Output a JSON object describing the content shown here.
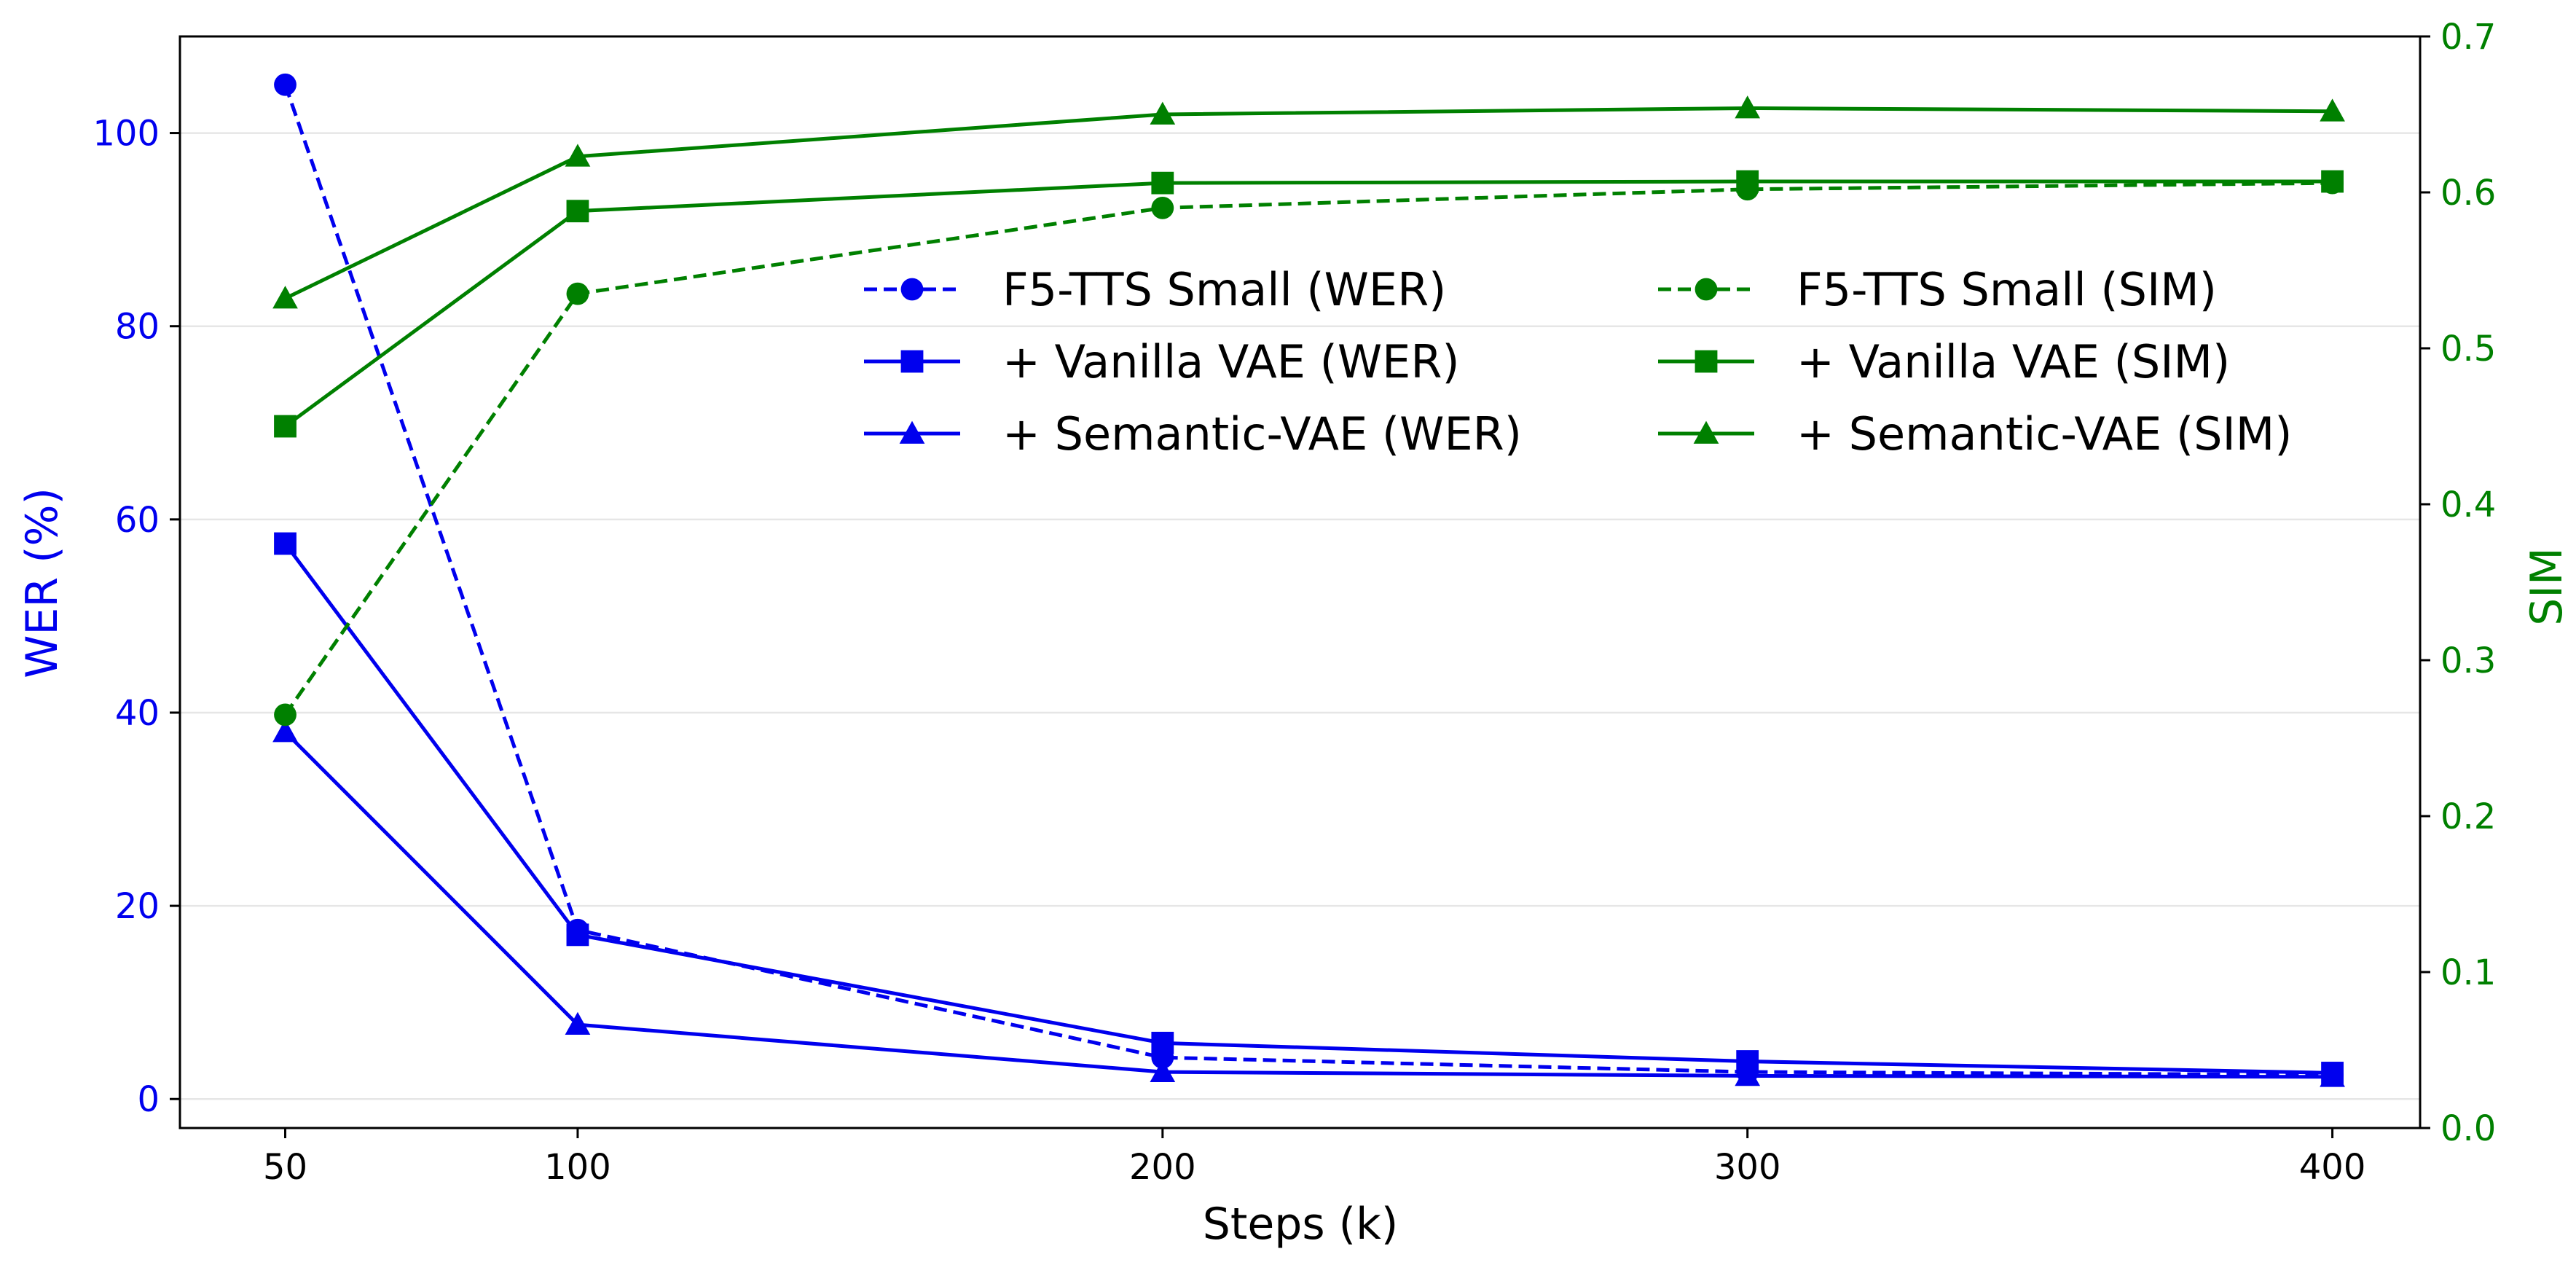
{
  "chart_data": {
    "type": "line",
    "title": "",
    "xlabel": "Steps (k)",
    "ylabel_left": "WER (%)",
    "ylabel_right": "SIM",
    "x": [
      50,
      100,
      200,
      300,
      400
    ],
    "xticks": [
      50,
      100,
      200,
      300,
      400
    ],
    "xlim": [
      32,
      415
    ],
    "ylim_left": [
      -3,
      110
    ],
    "ylim_right": [
      0.0,
      0.7
    ],
    "yticks_left": [
      0,
      20,
      40,
      60,
      80,
      100
    ],
    "yticks_right": [
      0.0,
      0.1,
      0.2,
      0.3,
      0.4,
      0.5,
      0.6,
      0.7
    ],
    "ytick_labels_right": [
      "0.0",
      "0.1",
      "0.2",
      "0.3",
      "0.4",
      "0.5",
      "0.6",
      "0.7"
    ],
    "grid": "horizontal",
    "legend_position": "upper-center",
    "colors": {
      "wer": "#0000ee",
      "sim": "#008000",
      "grid": "#e6e6e6"
    },
    "series": [
      {
        "name": "F5-TTS Small (WER)",
        "axis": "left",
        "color": "#0000ee",
        "dash": "dashed",
        "marker": "circle",
        "values": [
          105.0,
          17.5,
          4.3,
          2.8,
          2.5
        ]
      },
      {
        "name": "+ Vanilla VAE (WER)",
        "axis": "left",
        "color": "#0000ee",
        "dash": "solid",
        "marker": "square",
        "values": [
          57.5,
          17.0,
          5.8,
          3.9,
          2.7
        ]
      },
      {
        "name": "+ Semantic-VAE (WER)",
        "axis": "left",
        "color": "#0000ee",
        "dash": "solid",
        "marker": "triangle",
        "values": [
          38.0,
          7.7,
          2.8,
          2.4,
          2.3
        ]
      },
      {
        "name": "F5-TTS Small (SIM)",
        "axis": "right",
        "color": "#008000",
        "dash": "dashed",
        "marker": "circle",
        "values": [
          0.265,
          0.535,
          0.59,
          0.602,
          0.606
        ]
      },
      {
        "name": "+ Vanilla VAE (SIM)",
        "axis": "right",
        "color": "#008000",
        "dash": "solid",
        "marker": "square",
        "values": [
          0.45,
          0.588,
          0.606,
          0.607,
          0.607
        ]
      },
      {
        "name": "+ Semantic-VAE (SIM)",
        "axis": "right",
        "color": "#008000",
        "dash": "solid",
        "marker": "triangle",
        "values": [
          0.532,
          0.623,
          0.65,
          0.654,
          0.652
        ]
      }
    ]
  }
}
